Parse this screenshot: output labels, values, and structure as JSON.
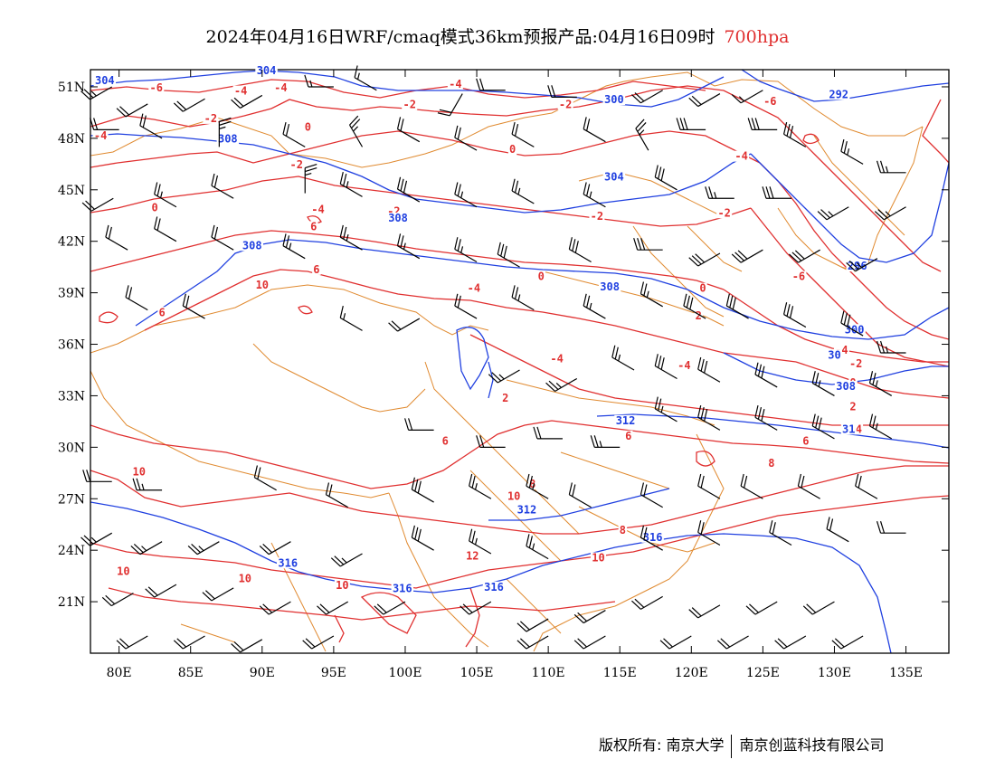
{
  "title": {
    "main": "2024年04月16日WRF/cmaq模式36km预报产品:04月16日09时",
    "level": "700hpa"
  },
  "axes": {
    "lon_labels": [
      "80E",
      "85E",
      "90E",
      "95E",
      "100E",
      "105E",
      "110E",
      "115E",
      "120E",
      "125E",
      "130E",
      "135E"
    ],
    "lat_labels": [
      "51N",
      "48N",
      "45N",
      "42N",
      "39N",
      "36N",
      "33N",
      "30N",
      "27N",
      "24N",
      "21N"
    ],
    "lon_range": [
      78,
      138
    ],
    "lat_range": [
      18,
      52
    ],
    "lon_ticks": [
      80,
      85,
      90,
      95,
      100,
      105,
      110,
      115,
      120,
      125,
      130,
      135
    ],
    "lat_ticks": [
      51,
      48,
      45,
      42,
      39,
      36,
      33,
      30,
      27,
      24,
      21
    ]
  },
  "colors": {
    "temperature_contour": "#e03030",
    "height_contour": "#2040e0",
    "boundary": "#e08a30",
    "wind_barb": "#000000"
  },
  "temperature_labels": [
    {
      "text": "-4",
      "lon": 78.7,
      "lat": 48.0
    },
    {
      "text": "-6",
      "lon": 82.6,
      "lat": 50.8
    },
    {
      "text": "-4",
      "lon": 88.5,
      "lat": 50.6
    },
    {
      "text": "-2",
      "lon": 86.4,
      "lat": 49.0
    },
    {
      "text": "-4",
      "lon": 91.3,
      "lat": 50.8
    },
    {
      "text": "-4",
      "lon": 103.5,
      "lat": 51.0
    },
    {
      "text": "-2",
      "lon": 100.3,
      "lat": 49.8
    },
    {
      "text": "-2",
      "lon": 111.2,
      "lat": 49.8
    },
    {
      "text": "-6",
      "lon": 125.5,
      "lat": 50.0
    },
    {
      "text": "0",
      "lon": 93.2,
      "lat": 48.5
    },
    {
      "text": "0",
      "lon": 107.5,
      "lat": 47.2
    },
    {
      "text": "-2",
      "lon": 92.4,
      "lat": 46.3
    },
    {
      "text": "0",
      "lon": 82.5,
      "lat": 43.8
    },
    {
      "text": "-4",
      "lon": 123.5,
      "lat": 46.8
    },
    {
      "text": "-4",
      "lon": 93.9,
      "lat": 43.7
    },
    {
      "text": "-2",
      "lon": 99.2,
      "lat": 43.6
    },
    {
      "text": "-2",
      "lon": 113.4,
      "lat": 43.3
    },
    {
      "text": "-2",
      "lon": 122.3,
      "lat": 43.5
    },
    {
      "text": "6",
      "lon": 93.6,
      "lat": 42.7
    },
    {
      "text": "6",
      "lon": 93.8,
      "lat": 40.2
    },
    {
      "text": "10",
      "lon": 90.0,
      "lat": 39.3
    },
    {
      "text": "-4",
      "lon": 104.8,
      "lat": 39.1
    },
    {
      "text": "-6",
      "lon": 127.5,
      "lat": 39.8
    },
    {
      "text": "0",
      "lon": 109.5,
      "lat": 39.8
    },
    {
      "text": "0",
      "lon": 120.8,
      "lat": 39.1
    },
    {
      "text": "6",
      "lon": 83.0,
      "lat": 37.7
    },
    {
      "text": "2",
      "lon": 120.5,
      "lat": 37.5
    },
    {
      "text": "-4",
      "lon": 130.5,
      "lat": 35.5
    },
    {
      "text": "-2",
      "lon": 131.5,
      "lat": 34.7
    },
    {
      "text": "-4",
      "lon": 110.6,
      "lat": 35.0
    },
    {
      "text": "-4",
      "lon": 119.5,
      "lat": 34.6
    },
    {
      "text": "0",
      "lon": 131.3,
      "lat": 33.6
    },
    {
      "text": "2",
      "lon": 107.0,
      "lat": 32.7
    },
    {
      "text": "2",
      "lon": 131.3,
      "lat": 32.2
    },
    {
      "text": "4",
      "lon": 131.7,
      "lat": 30.9
    },
    {
      "text": "6",
      "lon": 102.8,
      "lat": 30.2
    },
    {
      "text": "6",
      "lon": 115.6,
      "lat": 30.5
    },
    {
      "text": "6",
      "lon": 128.0,
      "lat": 30.2
    },
    {
      "text": "8",
      "lon": 125.6,
      "lat": 28.9
    },
    {
      "text": "10",
      "lon": 81.4,
      "lat": 28.4
    },
    {
      "text": "10",
      "lon": 107.6,
      "lat": 27.0
    },
    {
      "text": "8",
      "lon": 108.9,
      "lat": 27.7
    },
    {
      "text": "8",
      "lon": 115.2,
      "lat": 25.0
    },
    {
      "text": "12",
      "lon": 104.7,
      "lat": 23.5
    },
    {
      "text": "10",
      "lon": 113.5,
      "lat": 23.4
    },
    {
      "text": "10",
      "lon": 80.3,
      "lat": 22.6
    },
    {
      "text": "10",
      "lon": 88.8,
      "lat": 22.2
    },
    {
      "text": "10",
      "lon": 95.6,
      "lat": 21.8
    }
  ],
  "height_labels": [
    {
      "text": "304",
      "lon": 79.0,
      "lat": 51.2
    },
    {
      "text": "304",
      "lon": 90.3,
      "lat": 51.8
    },
    {
      "text": "300",
      "lon": 114.6,
      "lat": 50.1
    },
    {
      "text": "292",
      "lon": 130.3,
      "lat": 50.4
    },
    {
      "text": "308",
      "lon": 87.6,
      "lat": 47.8
    },
    {
      "text": "304",
      "lon": 114.6,
      "lat": 45.6
    },
    {
      "text": "308",
      "lon": 99.5,
      "lat": 43.2
    },
    {
      "text": "308",
      "lon": 89.3,
      "lat": 41.6
    },
    {
      "text": "296",
      "lon": 131.6,
      "lat": 40.4
    },
    {
      "text": "308",
      "lon": 114.3,
      "lat": 39.2
    },
    {
      "text": "300",
      "lon": 131.4,
      "lat": 36.7
    },
    {
      "text": "30",
      "lon": 130.0,
      "lat": 35.2
    },
    {
      "text": "308",
      "lon": 130.8,
      "lat": 33.4
    },
    {
      "text": "312",
      "lon": 115.4,
      "lat": 31.4
    },
    {
      "text": "31",
      "lon": 131.0,
      "lat": 30.9
    },
    {
      "text": "312",
      "lon": 108.5,
      "lat": 26.2
    },
    {
      "text": "316",
      "lon": 117.3,
      "lat": 24.6
    },
    {
      "text": "316",
      "lon": 91.8,
      "lat": 23.1
    },
    {
      "text": "316",
      "lon": 99.8,
      "lat": 21.6
    },
    {
      "text": "316",
      "lon": 106.2,
      "lat": 21.7
    }
  ],
  "wind_barbs": [
    [
      79.5,
      51,
      8,
      0,
      25
    ],
    [
      82,
      50,
      8,
      0,
      20
    ],
    [
      86,
      50.3,
      8,
      0,
      20
    ],
    [
      90,
      50.5,
      8,
      0,
      20
    ],
    [
      95,
      51,
      9,
      0,
      15
    ],
    [
      98,
      50.8,
      10,
      0,
      15
    ],
    [
      104,
      50.6,
      7,
      0,
      20
    ],
    [
      107,
      50.8,
      9,
      0,
      20
    ],
    [
      112,
      50.4,
      9,
      0,
      20
    ],
    [
      118,
      50.8,
      8,
      0,
      20
    ],
    [
      122,
      50.6,
      8,
      0,
      20
    ],
    [
      125,
      50.8,
      8,
      0,
      15
    ],
    [
      80,
      48.5,
      9,
      0,
      20
    ],
    [
      83,
      48,
      10,
      0,
      20
    ],
    [
      87,
      47.5,
      12,
      0,
      25
    ],
    [
      93,
      47.5,
      10,
      0,
      20
    ],
    [
      97,
      47.5,
      11,
      0,
      25
    ],
    [
      101,
      47.8,
      10,
      0,
      20
    ],
    [
      105,
      47.3,
      10,
      0,
      20
    ],
    [
      109,
      47.5,
      10,
      0,
      20
    ],
    [
      114,
      47.8,
      10,
      0,
      20
    ],
    [
      117,
      47.3,
      11,
      0,
      25
    ],
    [
      121,
      48.5,
      9,
      0,
      30
    ],
    [
      126,
      48.5,
      9,
      0,
      30
    ],
    [
      128,
      47.5,
      10,
      0,
      30
    ],
    [
      132,
      46.5,
      10,
      0,
      25
    ],
    [
      135,
      46,
      9,
      0,
      25
    ],
    [
      79.6,
      44.5,
      8,
      0,
      20
    ],
    [
      84,
      44,
      10,
      0,
      25
    ],
    [
      88,
      44.5,
      10,
      0,
      20
    ],
    [
      93,
      44.8,
      12,
      0,
      25
    ],
    [
      97,
      44.6,
      10,
      0,
      25
    ],
    [
      101,
      44.3,
      10,
      0,
      30
    ],
    [
      105,
      44,
      10,
      0,
      25
    ],
    [
      109,
      44.2,
      10,
      0,
      25
    ],
    [
      114,
      44,
      10,
      0,
      25
    ],
    [
      119,
      45,
      10,
      0,
      30
    ],
    [
      123,
      44.5,
      9,
      0,
      25
    ],
    [
      127,
      44.5,
      9,
      0,
      30
    ],
    [
      131,
      44,
      8,
      0,
      25
    ],
    [
      135,
      44,
      8,
      0,
      25
    ],
    [
      80.6,
      41.5,
      10,
      0,
      20
    ],
    [
      84,
      42,
      10,
      0,
      20
    ],
    [
      88,
      41.5,
      10,
      0,
      20
    ],
    [
      93,
      41,
      10,
      0,
      25
    ],
    [
      97,
      41.5,
      10,
      0,
      25
    ],
    [
      101,
      41,
      10,
      0,
      25
    ],
    [
      105,
      40.8,
      10,
      0,
      25
    ],
    [
      108,
      40.5,
      10,
      0,
      30
    ],
    [
      113,
      40.8,
      10,
      0,
      30
    ],
    [
      118,
      41.5,
      9,
      0,
      30
    ],
    [
      122,
      41.3,
      8,
      0,
      30
    ],
    [
      125,
      41.5,
      8,
      0,
      30
    ],
    [
      129,
      41.5,
      8,
      0,
      30
    ],
    [
      133,
      41,
      8,
      0,
      25
    ],
    [
      82,
      38,
      10,
      0,
      20
    ],
    [
      86,
      37.5,
      10,
      0,
      20
    ],
    [
      97,
      36.8,
      10,
      0,
      15
    ],
    [
      101,
      37.5,
      8,
      0,
      20
    ],
    [
      105,
      37.5,
      10,
      0,
      20
    ],
    [
      109,
      38,
      10,
      0,
      25
    ],
    [
      114,
      37.5,
      10,
      0,
      25
    ],
    [
      118,
      38.2,
      10,
      0,
      25
    ],
    [
      121,
      37.5,
      10,
      0,
      30
    ],
    [
      124,
      37.5,
      10,
      0,
      30
    ],
    [
      128,
      37,
      10,
      0,
      30
    ],
    [
      132,
      36.5,
      10,
      0,
      30
    ],
    [
      135,
      35.5,
      9,
      0,
      25
    ],
    [
      108,
      34.5,
      8,
      0,
      25
    ],
    [
      112,
      34,
      8,
      0,
      25
    ],
    [
      116,
      34.5,
      10,
      0,
      25
    ],
    [
      119,
      34,
      10,
      0,
      30
    ],
    [
      122,
      33.8,
      10,
      0,
      30
    ],
    [
      126,
      33.5,
      10,
      0,
      30
    ],
    [
      130,
      33,
      10,
      0,
      25
    ],
    [
      134,
      33,
      10,
      0,
      25
    ],
    [
      102,
      31,
      9,
      0,
      20
    ],
    [
      107,
      30,
      9,
      0,
      20
    ],
    [
      111,
      30.5,
      9,
      0,
      20
    ],
    [
      115,
      30,
      9,
      0,
      25
    ],
    [
      119,
      31.5,
      10,
      0,
      25
    ],
    [
      122,
      31,
      10,
      0,
      30
    ],
    [
      126,
      31,
      10,
      0,
      30
    ],
    [
      130,
      30.5,
      10,
      0,
      30
    ],
    [
      134,
      30.5,
      10,
      0,
      25
    ],
    [
      79.5,
      28,
      9,
      0,
      20
    ],
    [
      83,
      27.5,
      9,
      0,
      25
    ],
    [
      91,
      27.5,
      10,
      0,
      20
    ],
    [
      96,
      26.5,
      10,
      0,
      20
    ],
    [
      102,
      26.8,
      10,
      0,
      30
    ],
    [
      106,
      27,
      10,
      0,
      25
    ],
    [
      110,
      27,
      10,
      0,
      25
    ],
    [
      113,
      26.5,
      10,
      0,
      20
    ],
    [
      118,
      26.5,
      10,
      0,
      20
    ],
    [
      122,
      27,
      10,
      0,
      20
    ],
    [
      125,
      27,
      10,
      0,
      20
    ],
    [
      129,
      27,
      10,
      0,
      20
    ],
    [
      133,
      27,
      10,
      0,
      20
    ],
    [
      79.5,
      25,
      8,
      0,
      25
    ],
    [
      83,
      24.5,
      8,
      0,
      25
    ],
    [
      87,
      24.5,
      8,
      0,
      25
    ],
    [
      92,
      24.5,
      8,
      0,
      20
    ],
    [
      97,
      23.8,
      8,
      0,
      25
    ],
    [
      102,
      24,
      10,
      0,
      30
    ],
    [
      106,
      23.8,
      10,
      0,
      25
    ],
    [
      110,
      23.5,
      10,
      0,
      25
    ],
    [
      118,
      24,
      10,
      0,
      20
    ],
    [
      122,
      24.3,
      10,
      0,
      20
    ],
    [
      127,
      24.3,
      10,
      0,
      20
    ],
    [
      131,
      24.5,
      10,
      0,
      20
    ],
    [
      135,
      25,
      9,
      0,
      20
    ],
    [
      81,
      21.5,
      8,
      0,
      20
    ],
    [
      84,
      22,
      8,
      0,
      20
    ],
    [
      88,
      21.8,
      8,
      0,
      20
    ],
    [
      92,
      21,
      8,
      0,
      20
    ],
    [
      96,
      21,
      8,
      0,
      20
    ],
    [
      100,
      21,
      8,
      0,
      20
    ],
    [
      106,
      21,
      8,
      0,
      20
    ],
    [
      110,
      20,
      8,
      0,
      20
    ],
    [
      114,
      20.5,
      8,
      0,
      20
    ],
    [
      118,
      21.3,
      8,
      0,
      20
    ],
    [
      122,
      20.8,
      8,
      0,
      20
    ],
    [
      126,
      21,
      8,
      0,
      20
    ],
    [
      130,
      21,
      8,
      0,
      20
    ],
    [
      82,
      19,
      8,
      0,
      20
    ],
    [
      86,
      19,
      8,
      0,
      20
    ],
    [
      90,
      18.8,
      8,
      0,
      20
    ],
    [
      95,
      19,
      8,
      0,
      20
    ],
    [
      110,
      19,
      8,
      0,
      20
    ],
    [
      114,
      19,
      8,
      0,
      20
    ],
    [
      120,
      19,
      8,
      0,
      20
    ],
    [
      124,
      19,
      8,
      0,
      20
    ],
    [
      128,
      19,
      8,
      0,
      20
    ],
    [
      132,
      19,
      8,
      0,
      20
    ]
  ],
  "footer": {
    "left": "版权所有: 南京大学",
    "right": "南京创蓝科技有限公司"
  }
}
